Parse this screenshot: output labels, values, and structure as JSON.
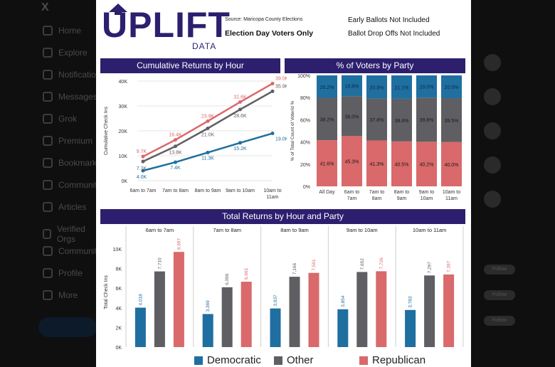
{
  "background_app": {
    "nav_items": [
      "Home",
      "Explore",
      "Notifications",
      "Messages",
      "Grok",
      "Premium",
      "Bookmarks",
      "Communities",
      "Articles",
      "Verified Orgs",
      "Communities",
      "Profile",
      "More"
    ],
    "follow_label": "Follow"
  },
  "brand": {
    "name": "UPLIFT",
    "sub": "DATA",
    "source": "Source: Maricopa County Elections",
    "subtitle": "Election Day Voters Only",
    "note1": "Early Ballots Not Included",
    "note2": "Ballot Drop Offs Not Included"
  },
  "colors": {
    "democratic": "#1f6fa0",
    "other": "#5f5f63",
    "republican": "#d9696a",
    "header": "#2d1f6e"
  },
  "legend": [
    {
      "label": "Democratic",
      "color": "#1f6fa0"
    },
    {
      "label": "Other",
      "color": "#5f5f63"
    },
    {
      "label": "Republican",
      "color": "#d9696a"
    }
  ],
  "chart_data": [
    {
      "type": "line",
      "title": "Cumulative Returns by Hour",
      "ylabel": "Cumulative Check Ins",
      "xlabel": "",
      "categories": [
        "6am to 7am",
        "7am to 8am",
        "8am to 9am",
        "9am to 10am",
        "10am to 11am"
      ],
      "ylim": [
        0,
        40000
      ],
      "yticks": [
        0,
        10000,
        20000,
        30000,
        40000
      ],
      "ytick_labels": [
        "0K",
        "10K",
        "20K",
        "30K",
        "40K"
      ],
      "series": [
        {
          "name": "Republican",
          "color": "#d9696a",
          "values": [
            9700,
            16400,
            23900,
            31600,
            39000
          ],
          "labels": [
            "9.7K",
            "16.4K",
            "23.9K",
            "31.6K",
            "39.0K"
          ]
        },
        {
          "name": "Other",
          "color": "#5f5f63",
          "values": [
            7700,
            13800,
            21000,
            28600,
            35900
          ],
          "labels": [
            "7.7K",
            "13.8K",
            "21.0K",
            "28.6K",
            "35.9K"
          ]
        },
        {
          "name": "Democratic",
          "color": "#1f6fa0",
          "values": [
            4000,
            7400,
            11300,
            15200,
            19000
          ],
          "labels": [
            "4.0K",
            "7.4K",
            "11.3K",
            "15.2K",
            "19.0K"
          ]
        }
      ]
    },
    {
      "type": "bar",
      "stacked": true,
      "title": "% of Voters by Party",
      "ylabel": "% of Total Count of VoterId %",
      "categories": [
        "All Day",
        "6am to 7am",
        "7am to 8am",
        "8am to 9am",
        "9am to 10am",
        "10am to 11am"
      ],
      "ylim": [
        0,
        100
      ],
      "ytick_labels": [
        "0%",
        "20%",
        "40%",
        "60%",
        "80%",
        "100%"
      ],
      "series": [
        {
          "name": "Republican",
          "color": "#d9696a",
          "values": [
            41.6,
            45.3,
            41.3,
            40.5,
            40.2,
            40.0
          ],
          "labels": [
            "41.6%",
            "45.3%",
            "41.3%",
            "40.5%",
            "40.2%",
            "40.0%"
          ]
        },
        {
          "name": "Other",
          "color": "#5f5f63",
          "values": [
            38.2,
            36.0,
            37.8,
            38.4,
            39.8,
            39.5
          ],
          "labels": [
            "38.2%",
            "36.0%",
            "37.8%",
            "38.4%",
            "39.8%",
            "39.5%"
          ]
        },
        {
          "name": "Democratic",
          "color": "#1f6fa0",
          "values": [
            20.2,
            18.8,
            20.9,
            21.1,
            20.0,
            20.5
          ],
          "labels": [
            "20.2%",
            "18.8%",
            "20.9%",
            "21.1%",
            "20.0%",
            "20.5%"
          ]
        }
      ]
    },
    {
      "type": "bar",
      "title": "Total Returns by Hour and Party",
      "ylabel": "Total Check Ins",
      "categories": [
        "6am to 7am",
        "7am to 8am",
        "8am to 9am",
        "9am to 10am",
        "10am to 11am"
      ],
      "ylim": [
        0,
        10000
      ],
      "yticks": [
        0,
        2000,
        4000,
        6000,
        8000,
        10000
      ],
      "ytick_labels": [
        "0K",
        "2K",
        "4K",
        "6K",
        "8K",
        "10K"
      ],
      "series": [
        {
          "name": "Democratic",
          "color": "#1f6fa0",
          "values": [
            4018,
            3369,
            3937,
            3854,
            3783
          ],
          "labels": [
            "4,018",
            "3,369",
            "3,937",
            "3,854",
            "3,783"
          ]
        },
        {
          "name": "Other",
          "color": "#5f5f63",
          "values": [
            7710,
            6096,
            7166,
            7652,
            7297
          ],
          "labels": [
            "7,710",
            "6,096",
            "7,166",
            "7,652",
            "7,297"
          ]
        },
        {
          "name": "Republican",
          "color": "#d9696a",
          "values": [
            9697,
            6661,
            7561,
            7726,
            7397
          ],
          "labels": [
            "9,697",
            "6,661",
            "7,561",
            "7,726",
            "7,397"
          ]
        }
      ]
    }
  ]
}
